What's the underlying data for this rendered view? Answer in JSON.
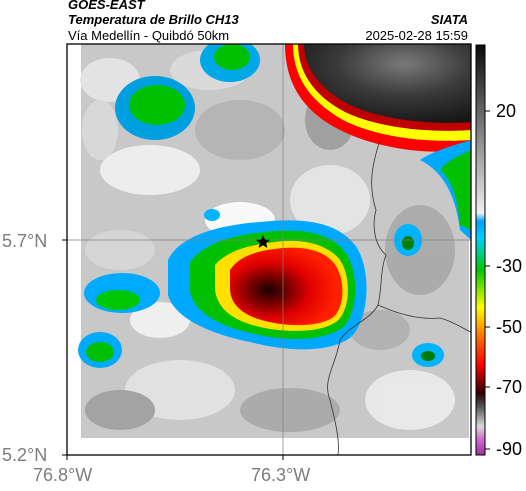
{
  "header": {
    "satellite": "GOES-EAST",
    "product": "Temperatura de Brillo CH13",
    "route": "Vía Medellín - Quibdó 50km",
    "source": "SIATA",
    "timestamp": "2025-02-28 15:59"
  },
  "map": {
    "lat_labels": [
      "5.7°N",
      "5.2°N"
    ],
    "lon_labels": [
      "76.8°W",
      "76.3°W"
    ],
    "marker": "star-marker"
  },
  "colorbar": {
    "tick_labels": [
      "20",
      "-30",
      "-50",
      "-70",
      "-90"
    ],
    "colors": [
      "#2a2a2a",
      "#ffffff",
      "#00b4ff",
      "#00c800",
      "#ffff00",
      "#ff0000",
      "#3a0000",
      "#c050c0"
    ]
  }
}
